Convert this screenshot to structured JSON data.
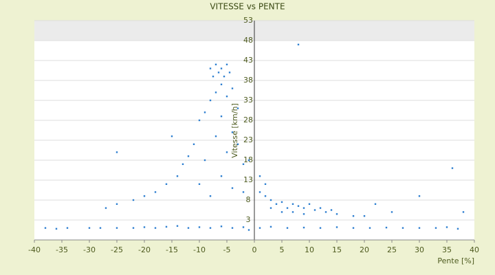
{
  "chart_data": {
    "type": "scatter",
    "title": "VITESSE vs PENTE",
    "x_label": "Pente [%]",
    "y_label": "Vitesse [km/h]",
    "color": "#2e7fd0",
    "grid": true,
    "xlim": [
      -40,
      40
    ],
    "xticks": [
      -40,
      -35,
      -30,
      -25,
      -20,
      -15,
      -10,
      -5,
      0,
      5,
      10,
      15,
      20,
      25,
      30,
      35,
      40
    ],
    "ylim": [
      -2,
      53
    ],
    "yticks": [
      3,
      8,
      13,
      18,
      23,
      28,
      33,
      38,
      43,
      48,
      53
    ],
    "x": [
      -38,
      -36,
      -34,
      -30,
      -28,
      -25,
      -22,
      -20,
      -18,
      -16,
      -14,
      -12,
      -10,
      -8,
      -6,
      -4,
      -2,
      -1,
      1,
      3,
      6,
      9,
      12,
      15,
      18,
      21,
      24,
      27,
      30,
      33,
      35,
      37,
      -8,
      -7.5,
      -7,
      -6.5,
      -6,
      -5.5,
      -5,
      -4.5,
      -6,
      -7,
      -8,
      -5,
      -4,
      -9,
      -10,
      -6,
      -3,
      -4,
      -7,
      -11,
      -12,
      -13,
      -9,
      -5,
      -3,
      -2,
      -1,
      -14,
      -16,
      -18,
      -20,
      -22,
      -25,
      -27,
      -10,
      -8,
      -6,
      -4,
      -2,
      -15,
      -25,
      1,
      2,
      3,
      4,
      5,
      6,
      7,
      8,
      9,
      10,
      11,
      12,
      13,
      14,
      15,
      3,
      5,
      7,
      9,
      2,
      1,
      18,
      20,
      22,
      25,
      30,
      36,
      38,
      8
    ],
    "values": [
      1,
      0.8,
      1,
      1,
      1,
      1,
      1,
      1.2,
      1,
      1.3,
      1.5,
      1,
      1.2,
      1,
      1.4,
      1,
      1.2,
      0.5,
      1,
      1.3,
      1,
      1.1,
      1,
      1.2,
      1,
      1,
      1.1,
      1,
      1,
      1,
      1.2,
      0.8,
      41,
      39,
      42,
      40,
      41,
      39,
      42,
      40,
      37,
      35,
      33,
      34,
      36,
      30,
      28,
      29,
      31,
      25,
      24,
      22,
      19,
      17,
      18,
      20,
      22,
      17,
      18,
      14,
      12,
      10,
      9,
      8,
      7,
      6,
      12,
      9,
      14,
      11,
      10,
      24,
      20,
      10,
      9,
      8,
      7,
      7.5,
      6,
      7,
      6.5,
      6,
      7,
      5.5,
      6,
      5,
      5.5,
      4.5,
      6,
      5,
      5,
      4.5,
      12,
      14,
      4,
      4,
      7,
      5,
      9,
      16,
      5,
      47
    ]
  }
}
